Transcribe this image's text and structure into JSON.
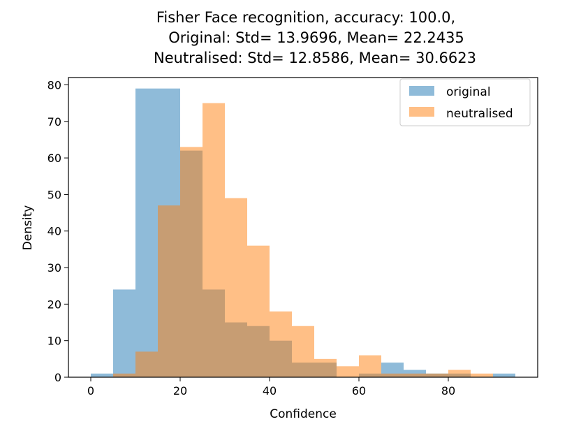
{
  "chart_data": {
    "type": "bar",
    "title_lines": [
      "Fisher Face recognition, accuracy: 100.0,",
      "Original: Std= 13.9696, Mean= 22.2435",
      "Neutralised: Std= 12.8586, Mean= 30.6623"
    ],
    "xlabel": "Confidence",
    "ylabel": "Density",
    "xlim": [
      -5,
      100
    ],
    "ylim": [
      0,
      82
    ],
    "xticks": [
      0,
      20,
      40,
      60,
      80
    ],
    "yticks": [
      0,
      10,
      20,
      30,
      40,
      50,
      60,
      70,
      80
    ],
    "grid": false,
    "legend_position": "top-right",
    "series": [
      {
        "name": "original",
        "color": "#1f77b4",
        "opacity": 0.5,
        "bin_edges": [
          0,
          5,
          10,
          15,
          20,
          25,
          30,
          35,
          40,
          45,
          50,
          55,
          60,
          65,
          70,
          75,
          80,
          85,
          90,
          95
        ],
        "values": [
          1,
          24,
          79,
          79,
          62,
          24,
          15,
          14,
          10,
          4,
          4,
          0,
          1,
          4,
          2,
          1,
          1,
          0,
          1
        ]
      },
      {
        "name": "neutralised",
        "color": "#ff7f0e",
        "opacity": 0.5,
        "bin_edges": [
          5,
          10,
          15,
          20,
          25,
          30,
          35,
          40,
          45,
          50,
          55,
          60,
          65,
          70,
          75,
          80,
          85,
          90
        ],
        "values": [
          1,
          7,
          47,
          63,
          75,
          49,
          36,
          18,
          14,
          5,
          3,
          6,
          1,
          1,
          1,
          2,
          1
        ]
      }
    ]
  }
}
